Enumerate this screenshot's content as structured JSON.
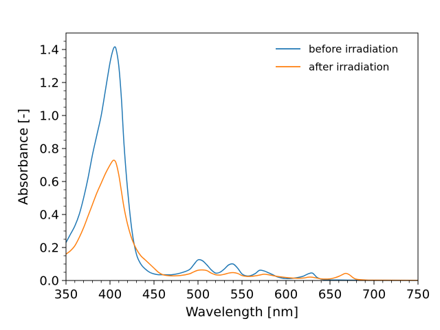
{
  "chart_data": {
    "type": "line",
    "title": "",
    "xlabel": "Wavelength [nm]",
    "ylabel": "Absorbance [-]",
    "xlim": [
      350,
      750
    ],
    "ylim": [
      0.0,
      1.5
    ],
    "grid": false,
    "legend_position": "top-right",
    "x_ticks": [
      350,
      400,
      450,
      500,
      550,
      600,
      650,
      700,
      750
    ],
    "x_tick_labels": [
      "350",
      "400",
      "450",
      "500",
      "550",
      "600",
      "650",
      "700",
      "750"
    ],
    "y_ticks": [
      0.0,
      0.2,
      0.4,
      0.6,
      0.8,
      1.0,
      1.2,
      1.4
    ],
    "y_tick_labels": [
      "0.0",
      "0.2",
      "0.4",
      "0.6",
      "0.8",
      "1.0",
      "1.2",
      "1.4"
    ],
    "series": [
      {
        "name": "before irradiation",
        "color": "#1f77b4",
        "x": [
          350,
          355,
          360,
          365,
          370,
          375,
          380,
          385,
          390,
          395,
          400,
          403,
          405,
          407,
          410,
          413,
          416,
          420,
          425,
          430,
          435,
          440,
          445,
          450,
          455,
          460,
          470,
          480,
          490,
          495,
          500,
          505,
          510,
          515,
          520,
          525,
          530,
          535,
          540,
          545,
          550,
          555,
          560,
          565,
          570,
          575,
          580,
          585,
          590,
          595,
          600,
          605,
          610,
          615,
          620,
          625,
          630,
          635,
          640,
          645,
          650,
          660,
          670,
          680,
          700,
          750
        ],
        "y": [
          0.23,
          0.28,
          0.33,
          0.4,
          0.5,
          0.62,
          0.76,
          0.88,
          1.0,
          1.16,
          1.32,
          1.39,
          1.415,
          1.4,
          1.3,
          1.1,
          0.82,
          0.55,
          0.3,
          0.16,
          0.1,
          0.07,
          0.05,
          0.04,
          0.035,
          0.035,
          0.035,
          0.045,
          0.065,
          0.095,
          0.125,
          0.12,
          0.095,
          0.065,
          0.045,
          0.05,
          0.07,
          0.095,
          0.1,
          0.075,
          0.04,
          0.028,
          0.03,
          0.042,
          0.062,
          0.058,
          0.047,
          0.035,
          0.022,
          0.015,
          0.012,
          0.012,
          0.015,
          0.02,
          0.027,
          0.04,
          0.045,
          0.02,
          0.008,
          0.004,
          0.003,
          0.003,
          0.002,
          0.002,
          0.001,
          0.001
        ]
      },
      {
        "name": "after irradiation",
        "color": "#ff7f0e",
        "x": [
          350,
          355,
          360,
          365,
          370,
          375,
          380,
          385,
          390,
          395,
          400,
          403,
          405,
          407,
          410,
          413,
          416,
          420,
          425,
          430,
          435,
          440,
          445,
          450,
          455,
          460,
          465,
          470,
          480,
          490,
          495,
          500,
          505,
          510,
          515,
          520,
          525,
          530,
          535,
          540,
          545,
          550,
          555,
          560,
          565,
          570,
          575,
          580,
          590,
          600,
          610,
          620,
          625,
          630,
          640,
          650,
          655,
          660,
          665,
          668,
          672,
          676,
          680,
          690,
          700,
          750
        ],
        "y": [
          0.16,
          0.18,
          0.21,
          0.26,
          0.32,
          0.39,
          0.46,
          0.53,
          0.59,
          0.65,
          0.7,
          0.725,
          0.728,
          0.71,
          0.64,
          0.54,
          0.44,
          0.34,
          0.25,
          0.19,
          0.15,
          0.125,
          0.1,
          0.075,
          0.05,
          0.035,
          0.03,
          0.028,
          0.03,
          0.04,
          0.052,
          0.062,
          0.064,
          0.06,
          0.045,
          0.035,
          0.033,
          0.038,
          0.045,
          0.048,
          0.043,
          0.03,
          0.025,
          0.025,
          0.028,
          0.033,
          0.038,
          0.035,
          0.025,
          0.018,
          0.014,
          0.015,
          0.02,
          0.02,
          0.01,
          0.01,
          0.016,
          0.025,
          0.038,
          0.043,
          0.035,
          0.018,
          0.008,
          0.003,
          0.002,
          0.001
        ]
      }
    ]
  }
}
